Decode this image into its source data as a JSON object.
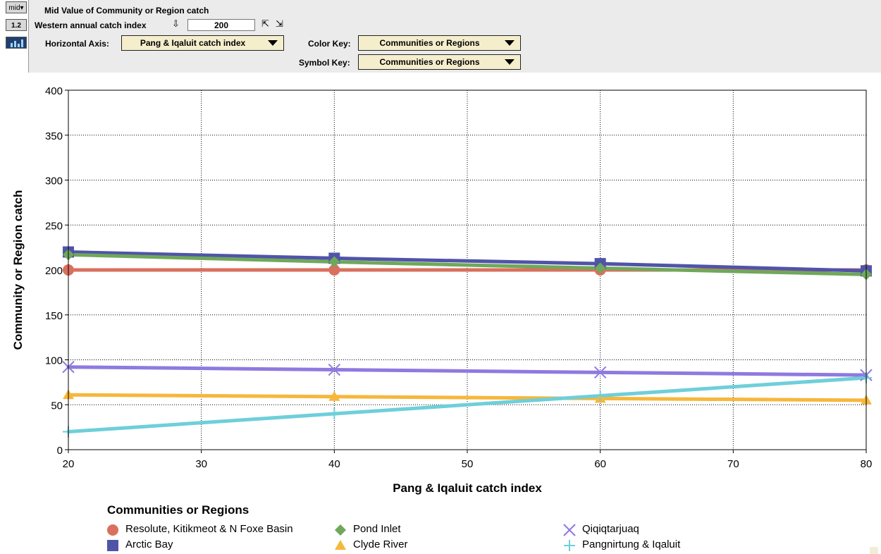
{
  "toolbar": {
    "mode_label": "mid▾",
    "value_icon_label": "1.2",
    "chart_icon": "chart-icon"
  },
  "panel": {
    "title": "Mid Value of Community or Region catch",
    "slider_label": "Western annual catch index",
    "slider_value": "200",
    "horizontal_axis_label": "Horizontal Axis:",
    "horizontal_axis_value": "Pang & Iqaluit catch index",
    "color_key_label": "Color Key:",
    "color_key_value": "Communities or Regions",
    "symbol_key_label": "Symbol Key:",
    "symbol_key_value": "Communities or Regions"
  },
  "chart_data": {
    "type": "line",
    "xlabel": "Pang & Iqaluit catch index",
    "ylabel": "Community or Region catch",
    "xlim": [
      20,
      80
    ],
    "ylim": [
      0,
      400
    ],
    "x_ticks": [
      20,
      30,
      40,
      50,
      60,
      70,
      80
    ],
    "y_ticks": [
      0,
      50,
      100,
      150,
      200,
      250,
      300,
      350,
      400
    ],
    "grid": true,
    "legend_title": "Communities or Regions",
    "x": [
      20,
      40,
      60,
      80
    ],
    "series": [
      {
        "name": "Resolute, Kitikmeot & N Foxe Basin",
        "color": "#d9705e",
        "marker": "circle",
        "values": [
          200,
          200,
          200,
          200
        ]
      },
      {
        "name": "Arctic Bay",
        "color": "#5054a8",
        "marker": "square",
        "values": [
          220,
          213,
          207,
          199
        ]
      },
      {
        "name": "Pond Inlet",
        "color": "#6fa85a",
        "marker": "diamond",
        "values": [
          217,
          209,
          202,
          195
        ]
      },
      {
        "name": "Clyde River",
        "color": "#f6b73c",
        "marker": "triangle",
        "values": [
          61,
          59,
          57,
          55
        ]
      },
      {
        "name": "Qiqiqtarjuaq",
        "color": "#8e7ae0",
        "marker": "x",
        "values": [
          92,
          89,
          86,
          83
        ]
      },
      {
        "name": "Pangnirtung & Iqaluit",
        "color": "#6ecfd9",
        "marker": "plus",
        "values": [
          20,
          40,
          60,
          80
        ]
      }
    ]
  }
}
